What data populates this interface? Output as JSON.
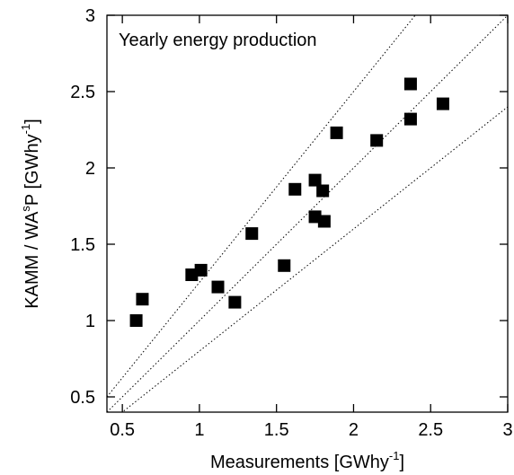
{
  "chart_data": {
    "type": "scatter",
    "annotation": "Yearly energy production",
    "xlabel": {
      "main": "Measurements  [GWhy",
      "sup": "-1",
      "end": "]"
    },
    "ylabel": {
      "main": "KAMM / WA",
      "sup1": "s",
      "mid": "P  [GWhy",
      "sup2": "-1",
      "end": "]"
    },
    "xlim": [
      0.4,
      3
    ],
    "ylim": [
      0.4,
      3
    ],
    "xticks": [
      0.5,
      1,
      1.5,
      2,
      2.5,
      3
    ],
    "yticks": [
      0.5,
      1,
      1.5,
      2,
      2.5,
      3
    ],
    "xtick_labels": [
      "0.5",
      "1",
      "1.5",
      "2",
      "2.5",
      "3"
    ],
    "ytick_labels": [
      "0.5",
      "1",
      "1.5",
      "2",
      "2.5",
      "3"
    ],
    "grid": false,
    "marker": "square",
    "marker_color": "#000000",
    "reference_lines": [
      {
        "slope": 1.25,
        "style": "dotted"
      },
      {
        "slope": 1.0,
        "style": "dotted"
      },
      {
        "slope": 0.8,
        "style": "dotted"
      }
    ],
    "series": [
      {
        "points": [
          {
            "x": 0.59,
            "y": 1.0
          },
          {
            "x": 0.63,
            "y": 1.14
          },
          {
            "x": 0.95,
            "y": 1.3
          },
          {
            "x": 1.01,
            "y": 1.33
          },
          {
            "x": 1.12,
            "y": 1.22
          },
          {
            "x": 1.23,
            "y": 1.12
          },
          {
            "x": 1.34,
            "y": 1.57
          },
          {
            "x": 1.55,
            "y": 1.36
          },
          {
            "x": 1.62,
            "y": 1.86
          },
          {
            "x": 1.75,
            "y": 1.92
          },
          {
            "x": 1.75,
            "y": 1.68
          },
          {
            "x": 1.8,
            "y": 1.85
          },
          {
            "x": 1.81,
            "y": 1.65
          },
          {
            "x": 1.89,
            "y": 2.23
          },
          {
            "x": 2.15,
            "y": 2.18
          },
          {
            "x": 2.37,
            "y": 2.55
          },
          {
            "x": 2.37,
            "y": 2.32
          },
          {
            "x": 2.58,
            "y": 2.42
          }
        ]
      }
    ]
  }
}
